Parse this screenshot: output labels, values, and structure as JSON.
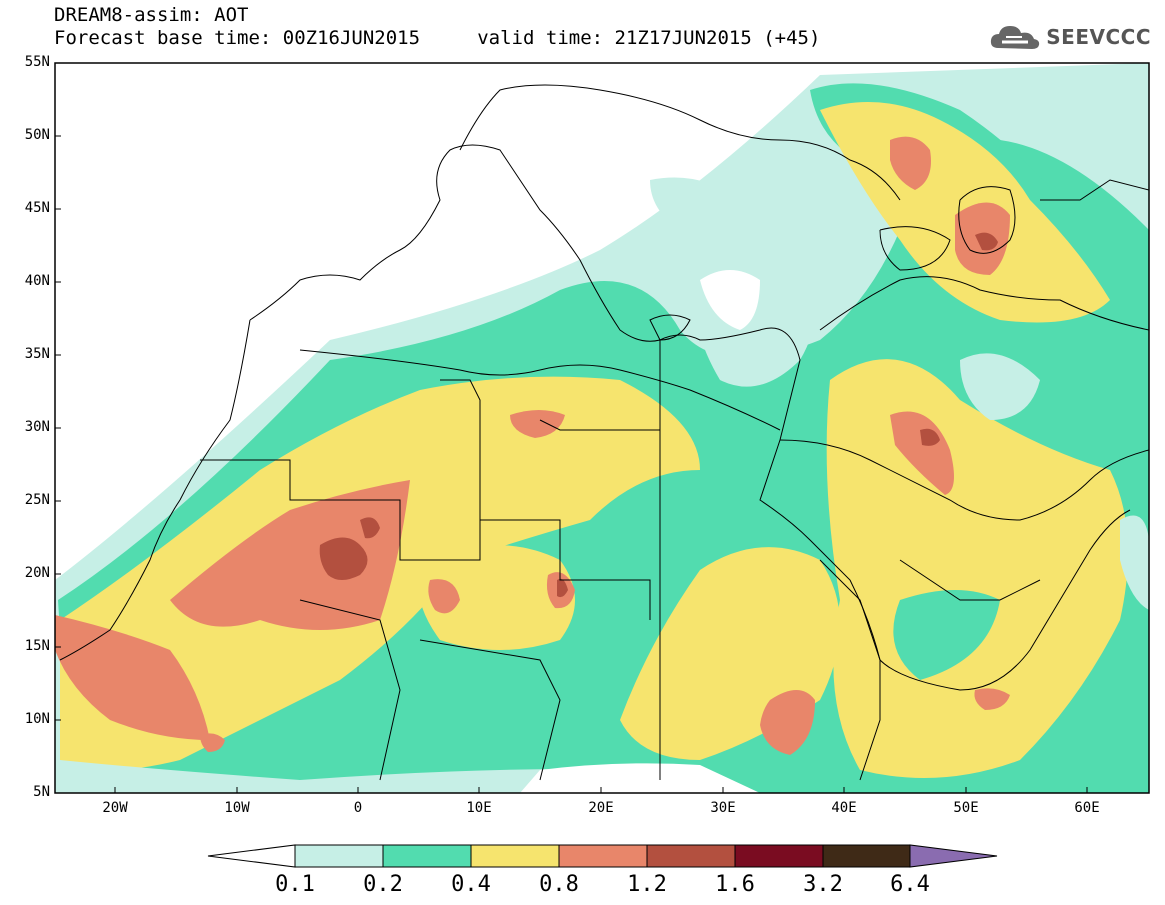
{
  "title": {
    "line1": "DREAM8-assim: AOT",
    "line2": "Forecast base time: 00Z16JUN2015     valid time: 21Z17JUN2015 (+45)"
  },
  "logo": {
    "text": "SEEVCCC",
    "icon": "cloud-icon"
  },
  "map": {
    "lat_labels": [
      "55N",
      "50N",
      "45N",
      "40N",
      "35N",
      "30N",
      "25N",
      "20N",
      "15N",
      "10N",
      "5N"
    ],
    "lon_labels": [
      "20W",
      "10W",
      "0",
      "10E",
      "20E",
      "30E",
      "40E",
      "50E",
      "60E"
    ]
  },
  "colorbar": {
    "labels": [
      "0.1",
      "0.2",
      "0.4",
      "0.8",
      "1.2",
      "1.6",
      "3.2",
      "6.4"
    ],
    "colors": [
      "#ffffff",
      "#c6efe6",
      "#52dcaf",
      "#f6e46e",
      "#e8866a",
      "#b3503f",
      "#7a0c21",
      "#3f2a17",
      "#8a6cb0"
    ]
  }
}
